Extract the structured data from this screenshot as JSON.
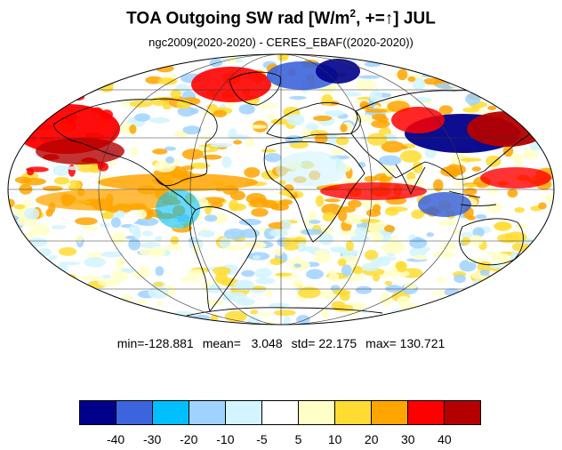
{
  "title": {
    "main": "TOA Outgoing SW rad [W/m",
    "sup": "2",
    "tail": ", +=↑] JUL"
  },
  "subtitle": "ngc2009(2020-2020) - CERES_EBAF((2020-2020))",
  "stats": {
    "min": "min=-128.881",
    "mean": "mean=   3.048",
    "std": "std= 22.175",
    "max": "max= 130.721"
  },
  "colorbar": {
    "colors": [
      "#00008b",
      "#3c64dc",
      "#00bfff",
      "#a0d2ff",
      "#d2f5ff",
      "#ffffff",
      "#ffffc8",
      "#ffdc32",
      "#ffa500",
      "#ff0000",
      "#b40000"
    ],
    "labels": [
      "-40",
      "-30",
      "-20",
      "-10",
      "-5",
      "5",
      "10",
      "20",
      "30",
      "40"
    ]
  },
  "map": {
    "projection": "mollweide",
    "variable": "TOA Outgoing SW rad difference",
    "month": "JUL"
  }
}
